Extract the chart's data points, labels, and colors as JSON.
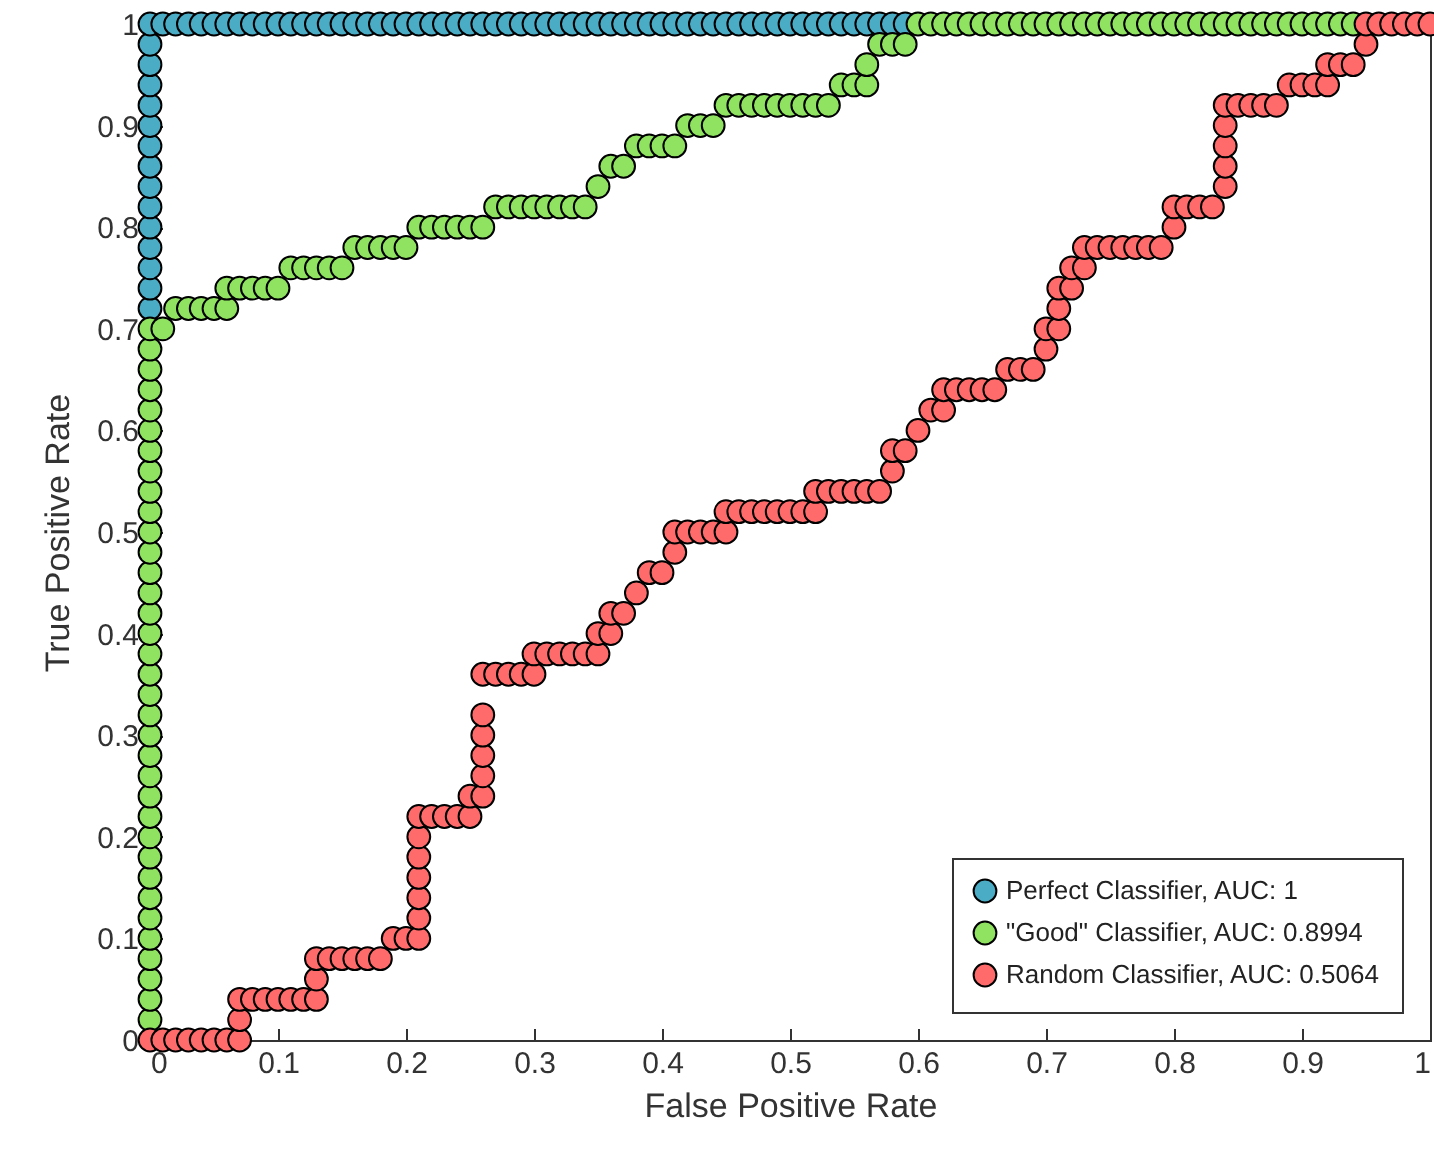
{
  "chart_data": {
    "type": "scatter",
    "xlabel": "False Positive Rate",
    "ylabel": "True Positive Rate",
    "xlim": [
      0,
      1
    ],
    "ylim": [
      0,
      1
    ],
    "xticks": [
      0,
      0.1,
      0.2,
      0.3,
      0.4,
      0.5,
      0.6,
      0.7,
      0.8,
      0.9,
      1
    ],
    "yticks": [
      0,
      0.1,
      0.2,
      0.3,
      0.4,
      0.5,
      0.6,
      0.7,
      0.8,
      0.9,
      1
    ],
    "grid": false,
    "legend": "bottom right",
    "marker": "circle",
    "series": [
      {
        "name": "Perfect Classifier, AUC: 1",
        "color": "#4bacc6",
        "x": [
          0,
          0,
          0,
          0,
          0,
          0,
          0,
          0,
          0,
          0,
          0,
          0,
          0,
          0,
          0,
          0.01,
          0.02,
          0.03,
          0.04,
          0.05,
          0.06,
          0.07,
          0.08,
          0.09,
          0.1,
          0.11,
          0.12,
          0.13,
          0.14,
          0.15,
          0.16,
          0.17,
          0.18,
          0.19,
          0.2,
          0.21,
          0.22,
          0.23,
          0.24,
          0.25,
          0.26,
          0.27,
          0.28,
          0.29,
          0.3,
          0.31,
          0.32,
          0.33,
          0.34,
          0.35,
          0.36,
          0.37,
          0.38,
          0.39,
          0.4,
          0.41,
          0.42,
          0.43,
          0.44,
          0.45,
          0.46,
          0.47,
          0.48,
          0.49,
          0.5,
          0.51,
          0.52,
          0.53,
          0.54,
          0.55,
          0.56,
          0.57,
          0.58,
          0.59
        ],
        "values": [
          0.72,
          0.74,
          0.76,
          0.78,
          0.8,
          0.82,
          0.84,
          0.86,
          0.88,
          0.9,
          0.92,
          0.94,
          0.96,
          0.98,
          1,
          1,
          1,
          1,
          1,
          1,
          1,
          1,
          1,
          1,
          1,
          1,
          1,
          1,
          1,
          1,
          1,
          1,
          1,
          1,
          1,
          1,
          1,
          1,
          1,
          1,
          1,
          1,
          1,
          1,
          1,
          1,
          1,
          1,
          1,
          1,
          1,
          1,
          1,
          1,
          1,
          1,
          1,
          1,
          1,
          1,
          1,
          1,
          1,
          1,
          1,
          1,
          1,
          1,
          1,
          1,
          1,
          1,
          1,
          1
        ]
      },
      {
        "name": "\"Good\" Classifier, AUC: 0.8994",
        "color": "#8fe360",
        "x": [
          0,
          0,
          0,
          0,
          0,
          0,
          0,
          0,
          0,
          0,
          0,
          0,
          0,
          0,
          0,
          0,
          0,
          0,
          0,
          0,
          0,
          0,
          0,
          0,
          0,
          0,
          0,
          0,
          0,
          0,
          0,
          0,
          0,
          0,
          0,
          0.01,
          0.02,
          0.03,
          0.04,
          0.05,
          0.06,
          0.06,
          0.07,
          0.08,
          0.09,
          0.1,
          0.11,
          0.12,
          0.13,
          0.14,
          0.15,
          0.16,
          0.17,
          0.18,
          0.19,
          0.2,
          0.21,
          0.22,
          0.23,
          0.24,
          0.25,
          0.26,
          0.27,
          0.28,
          0.29,
          0.3,
          0.31,
          0.32,
          0.33,
          0.34,
          0.35,
          0.36,
          0.37,
          0.38,
          0.39,
          0.4,
          0.41,
          0.42,
          0.43,
          0.44,
          0.45,
          0.46,
          0.47,
          0.48,
          0.49,
          0.5,
          0.51,
          0.52,
          0.53,
          0.54,
          0.55,
          0.56,
          0.56,
          0.57,
          0.58,
          0.59,
          0.6,
          0.61,
          0.62,
          0.63,
          0.64,
          0.65,
          0.66,
          0.67,
          0.68,
          0.69,
          0.7,
          0.71,
          0.72,
          0.73,
          0.74,
          0.75,
          0.76,
          0.77,
          0.78,
          0.79,
          0.8,
          0.81,
          0.82,
          0.83,
          0.84,
          0.85,
          0.86,
          0.87,
          0.88,
          0.89,
          0.9,
          0.91,
          0.92,
          0.93,
          0.94
        ],
        "values": [
          0.02,
          0.04,
          0.06,
          0.08,
          0.1,
          0.12,
          0.14,
          0.16,
          0.18,
          0.2,
          0.22,
          0.24,
          0.26,
          0.28,
          0.3,
          0.32,
          0.34,
          0.36,
          0.38,
          0.4,
          0.42,
          0.44,
          0.46,
          0.48,
          0.5,
          0.52,
          0.54,
          0.56,
          0.58,
          0.6,
          0.62,
          0.64,
          0.66,
          0.68,
          0.7,
          0.7,
          0.72,
          0.72,
          0.72,
          0.72,
          0.72,
          0.74,
          0.74,
          0.74,
          0.74,
          0.74,
          0.76,
          0.76,
          0.76,
          0.76,
          0.76,
          0.78,
          0.78,
          0.78,
          0.78,
          0.78,
          0.8,
          0.8,
          0.8,
          0.8,
          0.8,
          0.8,
          0.82,
          0.82,
          0.82,
          0.82,
          0.82,
          0.82,
          0.82,
          0.82,
          0.84,
          0.86,
          0.86,
          0.88,
          0.88,
          0.88,
          0.88,
          0.9,
          0.9,
          0.9,
          0.92,
          0.92,
          0.92,
          0.92,
          0.92,
          0.92,
          0.92,
          0.92,
          0.92,
          0.94,
          0.94,
          0.94,
          0.96,
          0.98,
          0.98,
          0.98,
          1,
          1,
          1,
          1,
          1,
          1,
          1,
          1,
          1,
          1,
          1,
          1,
          1,
          1,
          1,
          1,
          1,
          1,
          1,
          1,
          1,
          1,
          1,
          1,
          1,
          1,
          1,
          1,
          1,
          1,
          1,
          1,
          1,
          1,
          1
        ]
      },
      {
        "name": "Random Classifier, AUC: 0.5064",
        "color": "#ff6b6b",
        "x": [
          0,
          0.01,
          0.02,
          0.03,
          0.04,
          0.05,
          0.06,
          0.07,
          0.07,
          0.07,
          0.08,
          0.09,
          0.1,
          0.11,
          0.12,
          0.13,
          0.13,
          0.13,
          0.14,
          0.15,
          0.16,
          0.17,
          0.18,
          0.19,
          0.2,
          0.21,
          0.21,
          0.21,
          0.21,
          0.21,
          0.21,
          0.21,
          0.22,
          0.23,
          0.24,
          0.25,
          0.25,
          0.26,
          0.26,
          0.26,
          0.26,
          0.26,
          0.26,
          0.27,
          0.28,
          0.29,
          0.3,
          0.3,
          0.31,
          0.32,
          0.33,
          0.34,
          0.35,
          0.35,
          0.36,
          0.36,
          0.37,
          0.38,
          0.39,
          0.4,
          0.41,
          0.41,
          0.42,
          0.43,
          0.44,
          0.45,
          0.45,
          0.46,
          0.47,
          0.48,
          0.49,
          0.5,
          0.51,
          0.52,
          0.52,
          0.53,
          0.54,
          0.55,
          0.56,
          0.57,
          0.58,
          0.58,
          0.59,
          0.6,
          0.61,
          0.62,
          0.62,
          0.63,
          0.64,
          0.65,
          0.66,
          0.67,
          0.68,
          0.69,
          0.7,
          0.7,
          0.71,
          0.71,
          0.71,
          0.72,
          0.72,
          0.73,
          0.73,
          0.74,
          0.75,
          0.76,
          0.77,
          0.78,
          0.79,
          0.8,
          0.8,
          0.81,
          0.82,
          0.83,
          0.84,
          0.84,
          0.84,
          0.84,
          0.84,
          0.85,
          0.86,
          0.87,
          0.88,
          0.89,
          0.9,
          0.91,
          0.92,
          0.92,
          0.93,
          0.94,
          0.95,
          0.95,
          0.96,
          0.97,
          0.98,
          0.99,
          1
        ],
        "values": [
          0,
          0,
          0,
          0,
          0,
          0,
          0,
          0,
          0.02,
          0.04,
          0.04,
          0.04,
          0.04,
          0.04,
          0.04,
          0.04,
          0.06,
          0.08,
          0.08,
          0.08,
          0.08,
          0.08,
          0.08,
          0.1,
          0.1,
          0.1,
          0.12,
          0.14,
          0.16,
          0.18,
          0.2,
          0.22,
          0.22,
          0.22,
          0.22,
          0.22,
          0.24,
          0.24,
          0.26,
          0.28,
          0.3,
          0.32,
          0.36,
          0.36,
          0.36,
          0.36,
          0.36,
          0.38,
          0.38,
          0.38,
          0.38,
          0.38,
          0.38,
          0.4,
          0.4,
          0.42,
          0.42,
          0.44,
          0.46,
          0.46,
          0.48,
          0.5,
          0.5,
          0.5,
          0.5,
          0.5,
          0.52,
          0.52,
          0.52,
          0.52,
          0.52,
          0.52,
          0.52,
          0.52,
          0.54,
          0.54,
          0.54,
          0.54,
          0.54,
          0.54,
          0.56,
          0.58,
          0.58,
          0.6,
          0.62,
          0.62,
          0.64,
          0.64,
          0.64,
          0.64,
          0.64,
          0.66,
          0.66,
          0.66,
          0.68,
          0.7,
          0.7,
          0.72,
          0.74,
          0.74,
          0.76,
          0.76,
          0.78,
          0.78,
          0.78,
          0.78,
          0.78,
          0.78,
          0.78,
          0.8,
          0.82,
          0.82,
          0.82,
          0.82,
          0.84,
          0.86,
          0.88,
          0.9,
          0.92,
          0.92,
          0.92,
          0.92,
          0.92,
          0.94,
          0.94,
          0.94,
          0.94,
          0.96,
          0.96,
          0.96,
          0.98,
          1,
          1,
          1,
          1,
          1,
          1
        ]
      }
    ]
  }
}
